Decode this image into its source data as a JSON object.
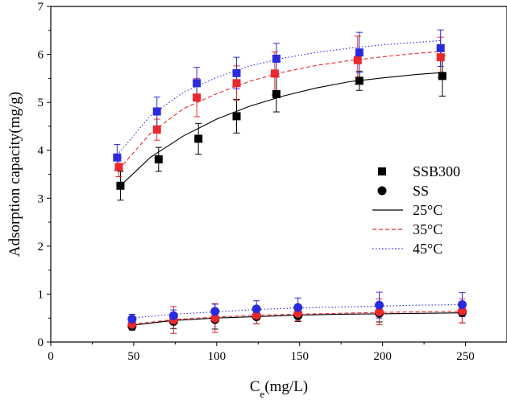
{
  "chart_data": {
    "type": "scatter",
    "xlabel": "Ce(mg/L)",
    "xlabel_main": "C",
    "xlabel_sub": "e",
    "xlabel_rest": "(mg/L)",
    "ylabel": "Adsorption capacity(mg/g)",
    "xlim": [
      0,
      275
    ],
    "ylim": [
      0,
      7
    ],
    "xticks": [
      0,
      50,
      100,
      150,
      200,
      250
    ],
    "yticks": [
      0,
      1,
      2,
      3,
      4,
      5,
      6,
      7
    ],
    "grid": false,
    "legend_position": "center-right",
    "legend": {
      "markers": [
        {
          "label": "SSB300",
          "marker": "square"
        },
        {
          "label": "SS",
          "marker": "circle"
        }
      ],
      "lines": [
        {
          "label": "25°C",
          "color": "#000000",
          "dash": "solid"
        },
        {
          "label": "35°C",
          "color": "#e8292d",
          "dash": "dashed"
        },
        {
          "label": "45°C",
          "color": "#2b2bde",
          "dash": "dotted"
        }
      ]
    },
    "scatter_series": [
      {
        "material": "SSB300",
        "temperature": "25°C",
        "color": "#000000",
        "marker": "square",
        "x": [
          42,
          65,
          89,
          112,
          136,
          186,
          236
        ],
        "y": [
          3.26,
          3.81,
          4.24,
          4.71,
          5.17,
          5.45,
          5.55
        ],
        "err": [
          0.3,
          0.25,
          0.32,
          0.35,
          0.37,
          0.2,
          0.42
        ]
      },
      {
        "material": "SSB300",
        "temperature": "35°C",
        "color": "#e8292d",
        "marker": "square",
        "x": [
          41,
          64,
          88,
          112,
          135,
          185,
          235
        ],
        "y": [
          3.65,
          4.43,
          5.1,
          5.4,
          5.6,
          5.88,
          5.94
        ],
        "err": [
          0.2,
          0.22,
          0.4,
          0.36,
          0.45,
          0.5,
          0.42
        ]
      },
      {
        "material": "SSB300",
        "temperature": "45°C",
        "color": "#2b2bde",
        "marker": "square",
        "x": [
          40,
          64,
          88,
          112,
          136,
          186,
          235
        ],
        "y": [
          3.85,
          4.81,
          5.4,
          5.61,
          5.91,
          6.04,
          6.13
        ],
        "err": [
          0.27,
          0.3,
          0.33,
          0.33,
          0.32,
          0.42,
          0.38
        ]
      },
      {
        "material": "SS",
        "temperature": "25°C",
        "color": "#000000",
        "marker": "circle",
        "x": [
          49,
          74,
          99,
          124,
          149,
          198,
          248
        ],
        "y": [
          0.33,
          0.43,
          0.47,
          0.53,
          0.55,
          0.6,
          0.62
        ],
        "err": [
          0.08,
          0.15,
          0.2,
          0.15,
          0.12,
          0.18,
          0.22
        ]
      },
      {
        "material": "SS",
        "temperature": "35°C",
        "color": "#e8292d",
        "marker": "circle",
        "x": [
          49,
          74,
          99,
          124,
          149,
          198,
          248
        ],
        "y": [
          0.37,
          0.46,
          0.5,
          0.56,
          0.6,
          0.63,
          0.65
        ],
        "err": [
          0.1,
          0.28,
          0.3,
          0.18,
          0.15,
          0.27,
          0.25
        ]
      },
      {
        "material": "SS",
        "temperature": "45°C",
        "color": "#2b2bde",
        "marker": "circle",
        "x": [
          49,
          74,
          99,
          124,
          149,
          198,
          248
        ],
        "y": [
          0.48,
          0.55,
          0.64,
          0.69,
          0.72,
          0.77,
          0.78
        ],
        "err": [
          0.1,
          0.12,
          0.15,
          0.17,
          0.2,
          0.27,
          0.25
        ]
      }
    ],
    "fit_lines": [
      {
        "material": "SSB300",
        "temperature": "25°C",
        "color": "#000000",
        "dash": "solid",
        "x": [
          42,
          60,
          80,
          100,
          120,
          140,
          160,
          180,
          200,
          220,
          236
        ],
        "y": [
          3.26,
          3.85,
          4.3,
          4.65,
          4.92,
          5.13,
          5.3,
          5.43,
          5.51,
          5.58,
          5.62
        ]
      },
      {
        "material": "SSB300",
        "temperature": "35°C",
        "color": "#e8292d",
        "dash": "dashed",
        "x": [
          41,
          60,
          80,
          100,
          120,
          140,
          160,
          180,
          200,
          220,
          236
        ],
        "y": [
          3.6,
          4.35,
          4.87,
          5.18,
          5.44,
          5.63,
          5.77,
          5.87,
          5.95,
          6.02,
          6.06
        ]
      },
      {
        "material": "SSB300",
        "temperature": "45°C",
        "color": "#2b2bde",
        "dash": "dotted",
        "x": [
          40,
          60,
          80,
          100,
          120,
          140,
          160,
          180,
          200,
          220,
          236
        ],
        "y": [
          3.9,
          4.72,
          5.21,
          5.52,
          5.76,
          5.92,
          6.04,
          6.13,
          6.2,
          6.25,
          6.29
        ]
      },
      {
        "material": "SS",
        "temperature": "25°C",
        "color": "#000000",
        "dash": "solid",
        "x": [
          49,
          74,
          99,
          124,
          149,
          174,
          198,
          223,
          248
        ],
        "y": [
          0.35,
          0.45,
          0.5,
          0.53,
          0.56,
          0.58,
          0.59,
          0.6,
          0.61
        ]
      },
      {
        "material": "SS",
        "temperature": "35°C",
        "color": "#e8292d",
        "dash": "dashed",
        "x": [
          49,
          74,
          99,
          124,
          149,
          174,
          198,
          223,
          248
        ],
        "y": [
          0.37,
          0.47,
          0.52,
          0.56,
          0.58,
          0.6,
          0.62,
          0.63,
          0.64
        ]
      },
      {
        "material": "SS",
        "temperature": "45°C",
        "color": "#2b2bde",
        "dash": "dotted",
        "x": [
          49,
          74,
          99,
          124,
          149,
          174,
          198,
          223,
          248
        ],
        "y": [
          0.5,
          0.58,
          0.63,
          0.68,
          0.71,
          0.73,
          0.75,
          0.77,
          0.78
        ]
      }
    ]
  }
}
